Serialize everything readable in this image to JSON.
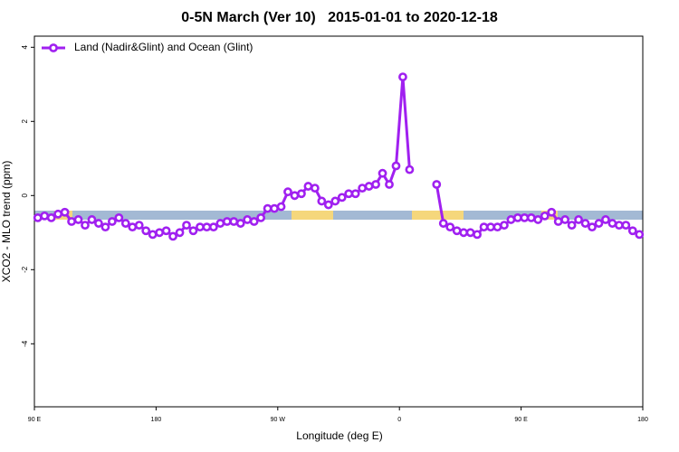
{
  "chart_data": {
    "type": "line",
    "title": "0-5N March (Ver 10)   2015-01-01 to 2020-12-18",
    "x_label": "Longitude (deg E)",
    "y_label": "XCO2 - MLO trend (ppm)",
    "x": [
      92.5,
      97.5,
      102.5,
      107.5,
      112.5,
      117.5,
      122.5,
      127.5,
      132.5,
      137.5,
      142.5,
      147.5,
      152.5,
      157.5,
      162.5,
      167.5,
      172.5,
      177.5,
      182.5,
      187.5,
      192.5,
      197.5,
      202.5,
      207.5,
      212.5,
      217.5,
      222.5,
      227.5,
      232.5,
      237.5,
      242.5,
      247.5,
      252.5,
      257.5,
      262.5,
      267.5,
      272.5,
      277.5,
      282.5,
      287.5,
      292.5,
      297.5,
      302.5,
      307.5,
      312.5,
      317.5,
      322.5,
      327.5,
      332.5,
      337.5,
      342.5,
      347.5,
      352.5,
      357.5,
      362.5,
      367.5,
      372.5,
      377.5,
      382.5,
      387.5,
      392.5,
      397.5,
      402.5,
      407.5,
      412.5,
      417.5,
      422.5,
      427.5,
      432.5,
      437.5,
      442.5,
      447.5,
      452.5,
      457.5,
      462.5,
      467.5,
      472.5,
      477.5,
      482.5,
      487.5,
      492.5,
      497.5,
      502.5,
      507.5,
      512.5,
      517.5,
      522.5,
      527.5,
      532.5,
      537.5
    ],
    "series": [
      {
        "name": "Land (Nadir&Glint) and Ocean (Glint)",
        "color": "#a020f0",
        "values": [
          -0.6,
          -0.55,
          -0.6,
          -0.5,
          -0.45,
          -0.7,
          -0.65,
          -0.8,
          -0.65,
          -0.75,
          -0.85,
          -0.7,
          -0.6,
          -0.75,
          -0.85,
          -0.8,
          -0.95,
          -1.05,
          -1.0,
          -0.95,
          -1.1,
          -1.0,
          -0.8,
          -0.95,
          -0.85,
          -0.85,
          -0.85,
          -0.75,
          -0.7,
          -0.7,
          -0.75,
          -0.65,
          -0.7,
          -0.6,
          -0.35,
          -0.35,
          -0.3,
          0.1,
          0.0,
          0.05,
          0.25,
          0.2,
          -0.15,
          -0.25,
          -0.15,
          -0.05,
          0.05,
          0.05,
          0.2,
          0.25,
          0.3,
          0.6,
          0.3,
          0.8,
          3.2,
          0.7,
          null,
          null,
          null,
          0.3,
          -0.75,
          -0.85,
          -0.95,
          -1.0,
          -1.0,
          -1.05,
          -0.85,
          -0.85,
          -0.85,
          -0.8,
          -0.65,
          -0.6,
          -0.6,
          -0.6,
          -0.65,
          -0.55,
          -0.45,
          -0.7,
          -0.65,
          -0.8,
          -0.65,
          -0.75,
          -0.85,
          -0.75,
          -0.65,
          -0.75,
          -0.8,
          -0.8,
          -0.95,
          -1.05
        ]
      }
    ],
    "xlim": [
      90,
      540
    ],
    "xticks": [
      {
        "value": 90,
        "label": "90 E"
      },
      180,
      {
        "value": 270,
        "label": "90 W"
      },
      {
        "value": 360,
        "label": "0"
      },
      {
        "value": 450,
        "label": "90 E"
      },
      {
        "value": 540,
        "label": "180"
      }
    ],
    "ylim": [
      -5.7,
      4.3
    ],
    "yticks": [
      -4,
      -2,
      0,
      2,
      4
    ],
    "legend": "top-left"
  }
}
